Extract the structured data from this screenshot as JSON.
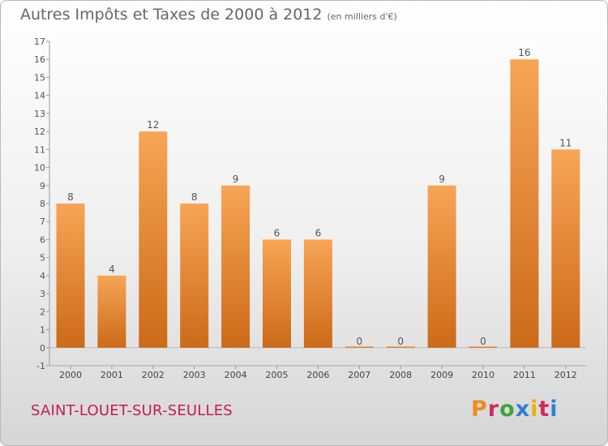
{
  "header": {
    "title": "Autres Impôts et Taxes de 2000 à 2012",
    "subtitle": "(en milliers d'€)"
  },
  "footer": {
    "commune": "SAINT-LOUET-SUR-SEULLES",
    "logo_text": "Proxiti"
  },
  "colors": {
    "bar_top": "#f7a555",
    "bar_bottom": "#cc6a18",
    "commune_text": "#c41e52",
    "logo": [
      "#f28a1c",
      "#d32a5e",
      "#3da53d",
      "#2f7fd0",
      "#e9b200",
      "#d32a5e",
      "#2f7fd0"
    ]
  },
  "chart_data": {
    "type": "bar",
    "title": "Autres Impôts et Taxes de 2000 à 2012",
    "subtitle": "(en milliers d'€)",
    "categories": [
      "2000",
      "2001",
      "2002",
      "2003",
      "2004",
      "2005",
      "2006",
      "2007",
      "2008",
      "2009",
      "2010",
      "2011",
      "2012"
    ],
    "values": [
      8,
      4,
      12,
      8,
      9,
      6,
      6,
      0,
      0,
      9,
      0,
      16,
      11
    ],
    "data_labels": [
      "8",
      "4",
      "12",
      "8",
      "9",
      "6",
      "6",
      "0",
      "0",
      "9",
      "0",
      "16",
      "11"
    ],
    "ylim": [
      -1,
      17
    ],
    "yticks": [
      "-1",
      "0",
      "1",
      "2",
      "3",
      "4",
      "5",
      "6",
      "7",
      "8",
      "9",
      "10",
      "11",
      "12",
      "13",
      "14",
      "15",
      "16",
      "17"
    ],
    "xlabel": "",
    "ylabel": "",
    "grid": false,
    "legend": "none"
  }
}
